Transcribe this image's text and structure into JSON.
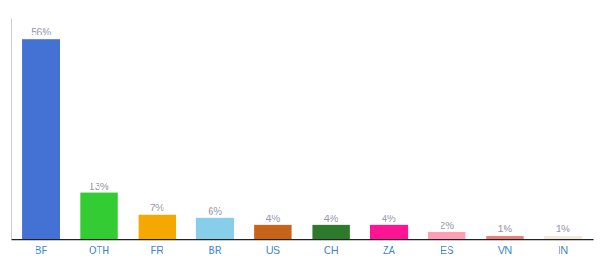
{
  "chart_data": {
    "type": "bar",
    "categories": [
      "BF",
      "OTH",
      "FR",
      "BR",
      "US",
      "CH",
      "ZA",
      "ES",
      "VN",
      "IN"
    ],
    "values": [
      56,
      13,
      7,
      6,
      4,
      4,
      4,
      2,
      1,
      1
    ],
    "value_labels": [
      "56%",
      "13%",
      "7%",
      "6%",
      "4%",
      "4%",
      "4%",
      "2%",
      "1%",
      "1%"
    ],
    "colors": [
      "#4472d4",
      "#33cc33",
      "#f5a800",
      "#87ceeb",
      "#c8631a",
      "#2d7a2d",
      "#ff1493",
      "#ff9eb5",
      "#e8827d",
      "#f0ead8"
    ],
    "ylim": [
      0,
      62
    ],
    "data_labels": true,
    "tick_labels": "x",
    "grid": false
  }
}
